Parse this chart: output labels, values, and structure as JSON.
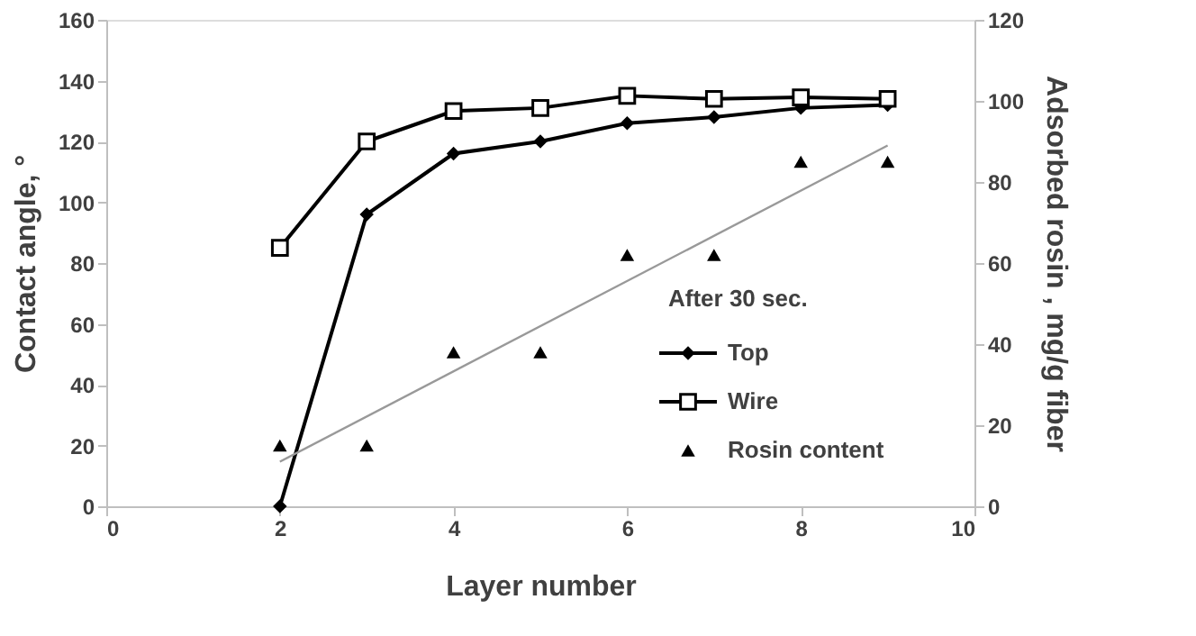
{
  "chart_data": {
    "type": "line",
    "xlabel": "Layer number",
    "ylabel": "Contact angle, °",
    "y2label": "Adsorbed rosin , mg/g fiber",
    "legend_title": "After 30 sec.",
    "legend": "bottom right",
    "grid": false,
    "x": [
      2,
      3,
      4,
      5,
      6,
      7,
      8,
      9
    ],
    "xlim": [
      0,
      10
    ],
    "xticks": [
      0,
      2,
      4,
      6,
      8,
      10
    ],
    "ylim": [
      0,
      160
    ],
    "yticks": [
      0,
      20,
      40,
      60,
      80,
      100,
      120,
      140,
      160
    ],
    "y2lim": [
      0,
      120
    ],
    "y2ticks": [
      0,
      20,
      40,
      60,
      80,
      100,
      120
    ],
    "series": [
      {
        "name": "Top",
        "color": "#000000",
        "marker": "diamond",
        "values": [
          0,
          96,
          116,
          120,
          126,
          128,
          131,
          132
        ]
      },
      {
        "name": "Wire",
        "color": "#000000",
        "marker": "square",
        "values": [
          85,
          120,
          130,
          131,
          135,
          134,
          134.5,
          134
        ]
      },
      {
        "name": "Rosin content",
        "type": "scatter",
        "axis": "y2",
        "color": "#000000",
        "marker": "triangle",
        "values": [
          15,
          15,
          38,
          38,
          62,
          62,
          85,
          85
        ]
      },
      {
        "type": "line",
        "axis": "y2",
        "color": "#999999",
        "marker": "none",
        "x": [
          2,
          9
        ],
        "values": [
          11,
          89
        ]
      }
    ]
  }
}
